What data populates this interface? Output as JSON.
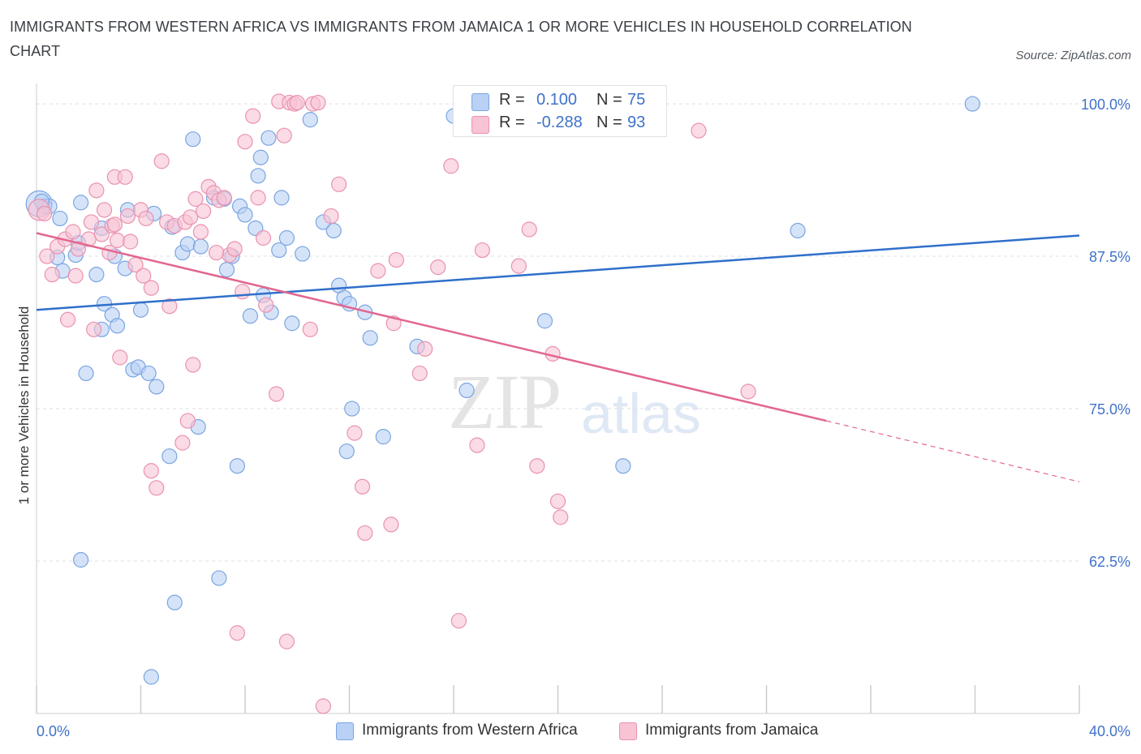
{
  "title": "IMMIGRANTS FROM WESTERN AFRICA VS IMMIGRANTS FROM JAMAICA 1 OR MORE VEHICLES IN HOUSEHOLD CORRELATION CHART",
  "source": "Source: ZipAtlas.com",
  "watermark": {
    "zip": "ZIP",
    "atlas": "atlas"
  },
  "colors": {
    "blue_fill": "#b9d1f5",
    "blue_stroke": "#7aa5e0",
    "blue_line": "#2f6fca",
    "pink_fill": "#f8c3d3",
    "pink_stroke": "#e992b0",
    "pink_line": "#e2668f",
    "tick_label": "#3f72c9",
    "grid": "#dcdfe4"
  },
  "legend": {
    "r_label": "R =",
    "n_label": "N =",
    "rows": [
      {
        "r": "0.100",
        "n": "75"
      },
      {
        "r": "-0.288",
        "n": "93"
      }
    ]
  },
  "chart_data": {
    "type": "scatter",
    "title": "IMMIGRANTS FROM WESTERN AFRICA VS IMMIGRANTS FROM JAMAICA 1 OR MORE VEHICLES IN HOUSEHOLD CORRELATION CHART",
    "xlabel": "",
    "ylabel": "1 or more Vehicles in Household",
    "xlim": [
      0,
      40
    ],
    "ylim": [
      50,
      102
    ],
    "x_tick_labels": [
      "0.0%",
      "40.0%"
    ],
    "y_ticks": [
      62.5,
      75.0,
      87.5,
      100.0
    ],
    "y_tick_labels": [
      "62.5%",
      "75.0%",
      "87.5%",
      "100.0%"
    ],
    "grid": true,
    "legend_position": "top-center",
    "series": [
      {
        "name": "Immigrants from Western Africa",
        "R": 0.1,
        "N": 75,
        "trend": {
          "x": [
            0,
            40
          ],
          "y": [
            83.1,
            89.2
          ]
        },
        "points": [
          [
            0.1,
            91.8
          ],
          [
            0.3,
            91.6
          ],
          [
            0.5,
            91.6
          ],
          [
            0.9,
            90.6
          ],
          [
            1.7,
            91.9
          ],
          [
            0.8,
            87.4
          ],
          [
            1.0,
            86.3
          ],
          [
            1.5,
            87.6
          ],
          [
            1.6,
            88.6
          ],
          [
            2.3,
            86.0
          ],
          [
            2.5,
            89.8
          ],
          [
            2.6,
            83.6
          ],
          [
            2.9,
            82.7
          ],
          [
            3.0,
            87.5
          ],
          [
            3.1,
            81.8
          ],
          [
            3.4,
            86.5
          ],
          [
            3.5,
            91.3
          ],
          [
            3.7,
            78.2
          ],
          [
            3.9,
            78.4
          ],
          [
            4.0,
            83.1
          ],
          [
            4.3,
            77.9
          ],
          [
            4.5,
            91.0
          ],
          [
            4.6,
            76.8
          ],
          [
            5.1,
            71.1
          ],
          [
            5.2,
            89.9
          ],
          [
            5.3,
            59.1
          ],
          [
            5.6,
            87.8
          ],
          [
            5.8,
            88.5
          ],
          [
            6.0,
            97.1
          ],
          [
            6.2,
            73.5
          ],
          [
            6.3,
            88.3
          ],
          [
            6.8,
            92.3
          ],
          [
            7.2,
            92.2
          ],
          [
            7.3,
            86.4
          ],
          [
            7.5,
            87.5
          ],
          [
            7.7,
            70.3
          ],
          [
            7.8,
            91.6
          ],
          [
            8.0,
            90.9
          ],
          [
            8.2,
            82.6
          ],
          [
            8.4,
            89.8
          ],
          [
            8.5,
            94.1
          ],
          [
            8.6,
            95.6
          ],
          [
            8.7,
            84.3
          ],
          [
            8.9,
            97.2
          ],
          [
            9.0,
            82.9
          ],
          [
            9.3,
            88.0
          ],
          [
            9.4,
            92.3
          ],
          [
            9.6,
            89.0
          ],
          [
            9.8,
            82.0
          ],
          [
            10.2,
            87.7
          ],
          [
            10.5,
            98.7
          ],
          [
            11.0,
            90.3
          ],
          [
            11.4,
            89.6
          ],
          [
            11.6,
            85.1
          ],
          [
            11.8,
            84.1
          ],
          [
            11.9,
            71.5
          ],
          [
            12.0,
            83.6
          ],
          [
            12.1,
            75.0
          ],
          [
            12.6,
            82.9
          ],
          [
            12.8,
            80.8
          ],
          [
            13.3,
            72.7
          ],
          [
            14.6,
            80.1
          ],
          [
            16.0,
            99.0
          ],
          [
            16.5,
            76.5
          ],
          [
            18.7,
            100.1
          ],
          [
            19.5,
            82.2
          ],
          [
            22.5,
            70.3
          ],
          [
            29.2,
            89.6
          ],
          [
            35.9,
            100.0
          ],
          [
            1.7,
            62.6
          ],
          [
            7.0,
            61.1
          ],
          [
            4.4,
            53.0
          ],
          [
            2.5,
            81.5
          ],
          [
            1.9,
            77.9
          ],
          [
            0.2,
            92.0
          ]
        ]
      },
      {
        "name": "Immigrants from Jamaica",
        "R": -0.288,
        "N": 93,
        "trend": {
          "x": [
            0,
            30.3
          ],
          "y": [
            89.4,
            74.0
          ]
        },
        "trend_dashed": {
          "x": [
            30.3,
            40
          ],
          "y": [
            74.0,
            69.0
          ]
        },
        "points": [
          [
            0.1,
            91.3
          ],
          [
            0.3,
            91.0
          ],
          [
            0.4,
            87.5
          ],
          [
            0.6,
            86.0
          ],
          [
            0.8,
            88.3
          ],
          [
            1.1,
            88.9
          ],
          [
            1.2,
            82.3
          ],
          [
            1.4,
            89.5
          ],
          [
            1.5,
            85.9
          ],
          [
            1.6,
            88.1
          ],
          [
            2.0,
            88.9
          ],
          [
            2.1,
            90.3
          ],
          [
            2.2,
            81.5
          ],
          [
            2.3,
            92.9
          ],
          [
            2.5,
            89.3
          ],
          [
            2.6,
            91.3
          ],
          [
            2.8,
            87.8
          ],
          [
            2.9,
            90.0
          ],
          [
            3.0,
            94.0
          ],
          [
            3.1,
            88.8
          ],
          [
            3.2,
            79.2
          ],
          [
            3.4,
            94.0
          ],
          [
            3.5,
            90.8
          ],
          [
            3.6,
            88.7
          ],
          [
            3.8,
            86.8
          ],
          [
            4.0,
            91.3
          ],
          [
            4.1,
            85.9
          ],
          [
            4.2,
            90.6
          ],
          [
            4.4,
            84.9
          ],
          [
            4.4,
            69.9
          ],
          [
            4.6,
            68.5
          ],
          [
            4.8,
            95.3
          ],
          [
            5.0,
            90.3
          ],
          [
            5.1,
            83.4
          ],
          [
            5.3,
            90.0
          ],
          [
            5.6,
            72.2
          ],
          [
            5.7,
            90.3
          ],
          [
            5.8,
            74.0
          ],
          [
            5.9,
            90.7
          ],
          [
            6.0,
            78.6
          ],
          [
            6.1,
            92.2
          ],
          [
            6.3,
            89.5
          ],
          [
            6.4,
            91.2
          ],
          [
            6.6,
            93.2
          ],
          [
            6.8,
            92.7
          ],
          [
            7.0,
            92.1
          ],
          [
            7.2,
            92.3
          ],
          [
            7.4,
            87.6
          ],
          [
            7.6,
            88.1
          ],
          [
            7.7,
            56.6
          ],
          [
            7.9,
            84.6
          ],
          [
            8.0,
            96.9
          ],
          [
            8.3,
            99.0
          ],
          [
            8.5,
            92.3
          ],
          [
            8.7,
            89.0
          ],
          [
            8.8,
            83.5
          ],
          [
            9.2,
            76.2
          ],
          [
            9.3,
            100.2
          ],
          [
            9.5,
            97.4
          ],
          [
            9.7,
            100.1
          ],
          [
            9.9,
            100.0
          ],
          [
            10.0,
            100.1
          ],
          [
            10.5,
            81.5
          ],
          [
            10.6,
            100.0
          ],
          [
            10.8,
            100.1
          ],
          [
            11.0,
            50.6
          ],
          [
            11.3,
            90.8
          ],
          [
            11.6,
            93.4
          ],
          [
            12.2,
            73.0
          ],
          [
            12.5,
            68.6
          ],
          [
            12.6,
            64.8
          ],
          [
            13.1,
            86.3
          ],
          [
            13.6,
            65.5
          ],
          [
            13.7,
            82.0
          ],
          [
            13.8,
            87.2
          ],
          [
            14.7,
            77.9
          ],
          [
            14.9,
            79.9
          ],
          [
            15.4,
            86.6
          ],
          [
            15.9,
            94.9
          ],
          [
            16.2,
            57.6
          ],
          [
            16.9,
            72.0
          ],
          [
            17.1,
            88.0
          ],
          [
            18.5,
            86.7
          ],
          [
            18.9,
            89.7
          ],
          [
            19.2,
            70.3
          ],
          [
            19.8,
            79.5
          ],
          [
            20.0,
            67.4
          ],
          [
            20.1,
            66.1
          ],
          [
            25.4,
            97.8
          ],
          [
            27.3,
            76.4
          ],
          [
            3.0,
            90.1
          ],
          [
            6.9,
            87.8
          ],
          [
            9.6,
            55.9
          ]
        ]
      }
    ]
  },
  "bottom_legend": [
    "Immigrants from Western Africa",
    "Immigrants from Jamaica"
  ]
}
